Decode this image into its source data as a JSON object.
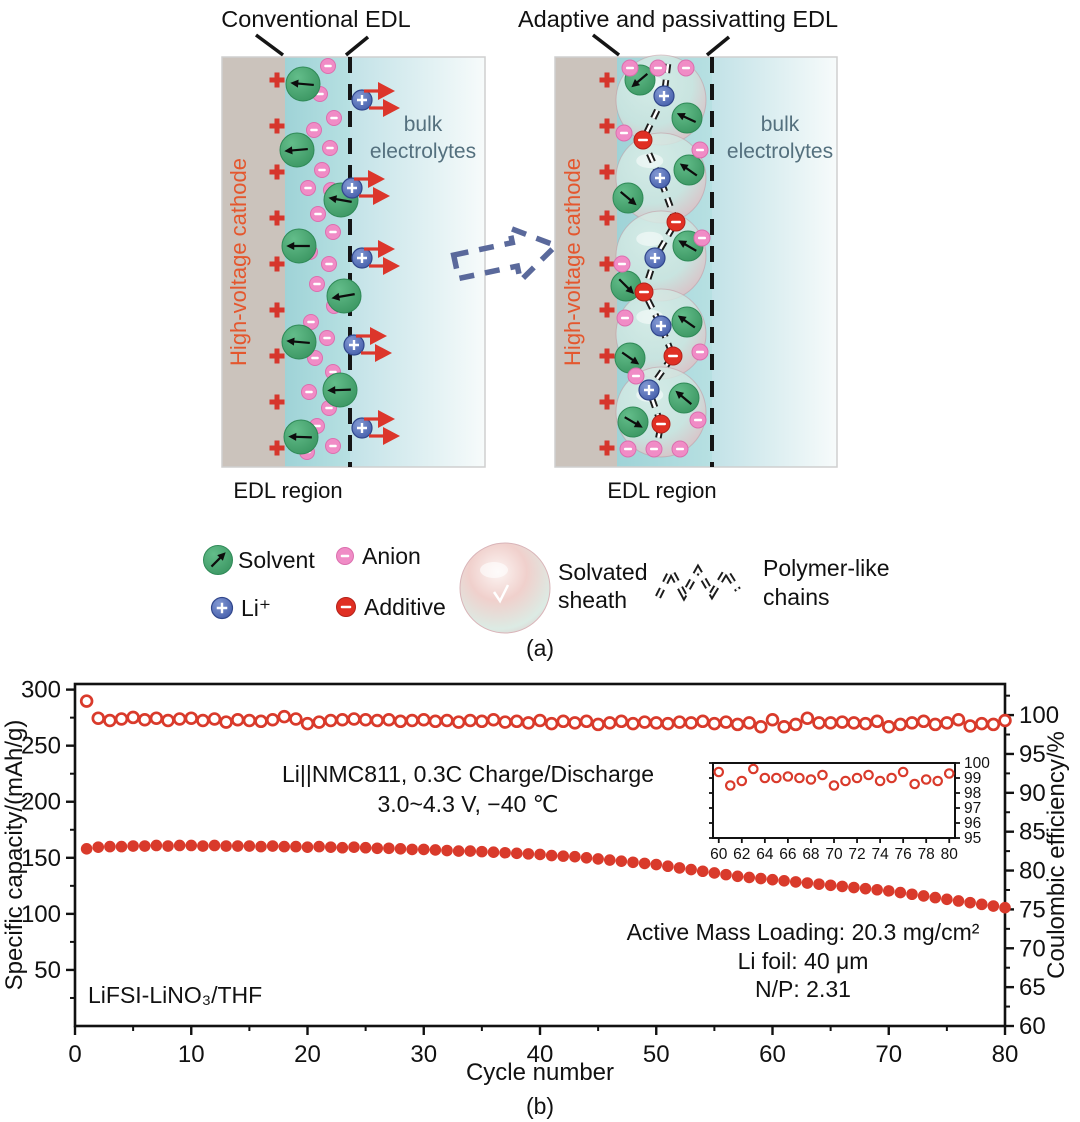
{
  "panel_a": {
    "caption": "(a)",
    "left": {
      "title": "Conventional EDL",
      "cathode_label": "High-voltage cathode",
      "bulk_label_line1": "bulk",
      "bulk_label_line2": "electrolytes",
      "region_label": "EDL region"
    },
    "right": {
      "title": "Adaptive and passivatting EDL",
      "cathode_label": "High-voltage cathode",
      "bulk_label_line1": "bulk",
      "bulk_label_line2": "electrolytes",
      "region_label": "EDL region"
    },
    "legend": {
      "solvent": "Solvent",
      "anion": "Anion",
      "li": "Li⁺",
      "additive": "Additive",
      "sheath_line1": "Solvated",
      "sheath_line2": "sheath",
      "chains_line1": "Polymer-like",
      "chains_line2": "chains"
    }
  },
  "colors": {
    "marker_red": "#d93a2b",
    "cathode_gray": "#cbc3bc",
    "edl_teal": "#a6d7da",
    "solvent_green": "#3f9e66",
    "anion_pink": "#f08cc6",
    "li_blue": "#4a66b0",
    "additive_red": "#e02f23",
    "cathode_text_orange": "#e4572e",
    "bulk_text_slate": "#54707e",
    "dashed_arrow_slate": "#5a699b",
    "axis_black": "#111111"
  },
  "chart_data": {
    "type": "scatter",
    "xlabel": "Cycle number",
    "ylabel_left": "Specific capacity/(mAh/g)",
    "ylabel_right": "Coulombic efficiency/%",
    "caption": "(b)",
    "xlim": [
      0,
      80
    ],
    "ylim_left": [
      0,
      305
    ],
    "ylim_right": [
      60,
      104
    ],
    "x_ticks": [
      0,
      10,
      20,
      30,
      40,
      50,
      60,
      70,
      80
    ],
    "x_minor_step": 5,
    "y_ticks_left": [
      50,
      100,
      150,
      200,
      250,
      300
    ],
    "y_ticks_right": [
      60,
      65,
      70,
      75,
      80,
      85,
      90,
      95,
      100
    ],
    "grid": false,
    "annotations": {
      "condition_line1": "Li||NMC811, 0.3C Charge/Discharge",
      "condition_line2": "3.0~4.3 V, −40 ℃",
      "loading_line1": "Active Mass Loading: 20.3 mg/cm²",
      "loading_line2": "Li foil: 40 μm",
      "loading_line3": "N/P: 2.31",
      "electrolyte": "LiFSI-LiNO₃/THF"
    },
    "series": [
      {
        "name": "Specific capacity",
        "axis": "left",
        "marker": "filled-circle",
        "x_start": 1,
        "values": [
          158,
          159.5,
          160,
          160,
          160.5,
          160.5,
          161,
          160.5,
          161,
          161,
          160.5,
          161,
          160.5,
          160.5,
          160.5,
          160,
          160.5,
          160,
          160,
          159.5,
          160,
          159.5,
          159,
          159.5,
          159,
          158.5,
          158.5,
          158,
          157.5,
          157.5,
          157,
          156.5,
          156,
          156,
          155.5,
          155,
          154.5,
          154,
          153.5,
          153,
          152,
          151.5,
          151,
          150,
          149,
          148,
          147,
          146,
          145,
          144,
          142.5,
          141,
          139.5,
          138,
          136.5,
          135,
          133.5,
          132.5,
          131.5,
          130.5,
          129.5,
          128.5,
          127.5,
          126.5,
          125.5,
          124.5,
          123.5,
          122.5,
          121.5,
          120.5,
          119,
          117.5,
          116,
          114.5,
          113,
          111.5,
          110,
          108.5,
          107,
          105.5
        ]
      },
      {
        "name": "Coulombic efficiency",
        "axis": "right",
        "marker": "open-circle",
        "x_start": 1,
        "values": [
          101.8,
          99.6,
          99.3,
          99.5,
          99.7,
          99.4,
          99.6,
          99.3,
          99.5,
          99.6,
          99.3,
          99.5,
          99.1,
          99.4,
          99.3,
          99.2,
          99.4,
          99.8,
          99.5,
          98.9,
          99.1,
          99.3,
          99.4,
          99.5,
          99.4,
          99.3,
          99.4,
          99.2,
          99.3,
          99.4,
          99.2,
          99.3,
          99.1,
          99.3,
          99.2,
          99.4,
          99.1,
          99.2,
          99.0,
          99.3,
          98.9,
          99.2,
          99.0,
          99.2,
          98.8,
          99.0,
          99.2,
          98.9,
          99.1,
          99.0,
          98.9,
          99.1,
          99.0,
          99.2,
          98.9,
          99.1,
          98.8,
          99.0,
          98.5,
          99.4,
          98.5,
          98.8,
          99.6,
          99.0,
          99.0,
          99.1,
          99.0,
          98.9,
          99.2,
          98.5,
          98.8,
          99.0,
          99.2,
          98.8,
          99.0,
          99.4,
          98.6,
          98.9,
          98.8,
          99.3
        ]
      }
    ],
    "inset": {
      "xlim": [
        59.5,
        80.5
      ],
      "ylim": [
        95,
        100
      ],
      "x_ticks": [
        60,
        62,
        64,
        66,
        68,
        70,
        72,
        74,
        76,
        78,
        80
      ],
      "y_ticks": [
        95,
        96,
        97,
        98,
        99,
        100
      ],
      "x_start": 60,
      "values": [
        99.4,
        98.5,
        98.8,
        99.6,
        99.0,
        99.0,
        99.1,
        99.0,
        98.9,
        99.2,
        98.5,
        98.8,
        99.0,
        99.2,
        98.8,
        99.0,
        99.4,
        98.6,
        98.9,
        98.8,
        99.3
      ]
    }
  }
}
